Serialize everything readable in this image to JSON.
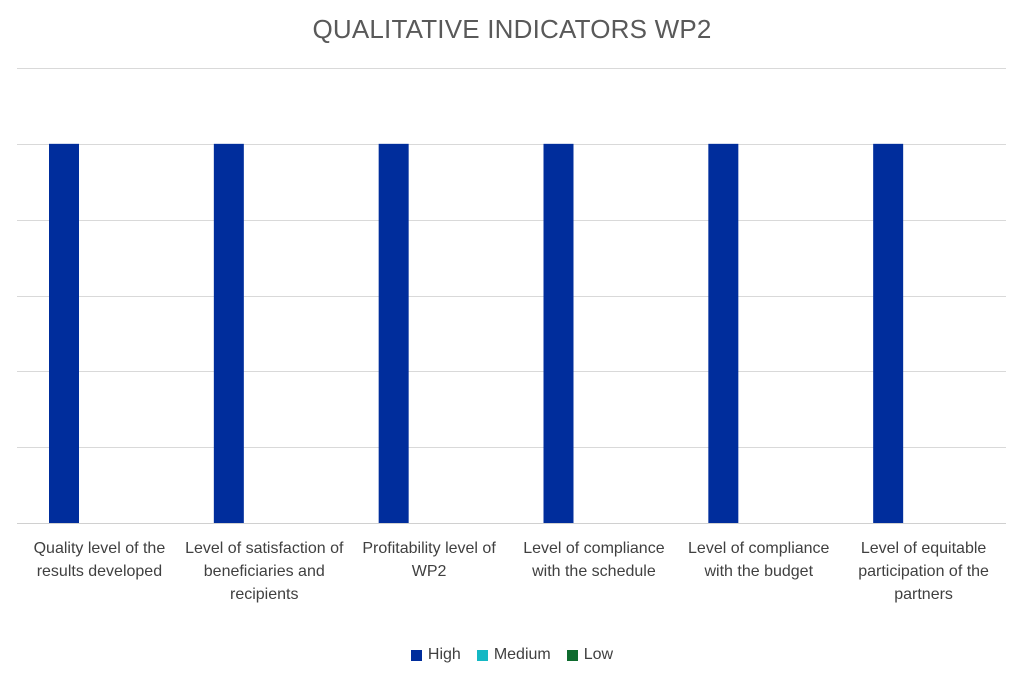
{
  "chart_data": {
    "type": "bar",
    "title": "QUALITATIVE INDICATORS WP2",
    "categories": [
      "Quality level of the results developed",
      "Level of satisfaction of beneficiaries and recipients",
      "Profitability level of WP2",
      "Level of compliance with the schedule",
      "Level of compliance with the budget",
      "Level of equitable participation of the partners"
    ],
    "series": [
      {
        "name": "High",
        "color": "#002D9C",
        "values": [
          1,
          1,
          1,
          1,
          1,
          1
        ]
      },
      {
        "name": "Medium",
        "color": "#14B8C4",
        "values": [
          0,
          0,
          0,
          0,
          0,
          0
        ]
      },
      {
        "name": "Low",
        "color": "#0E6B2E",
        "values": [
          0,
          0,
          0,
          0,
          0,
          0
        ]
      }
    ],
    "ylim": [
      0,
      1.2
    ],
    "grid": true,
    "legend_position": "bottom",
    "xlabel": "",
    "ylabel": ""
  }
}
